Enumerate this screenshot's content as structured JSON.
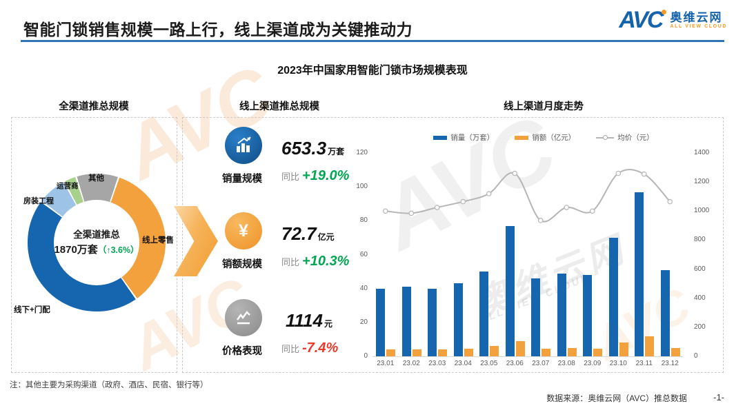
{
  "header": {
    "title": "智能门锁销售规模一路上行，线上渠道成为关键推动力",
    "logo": {
      "avc": "AVC",
      "cn": "奥维云网",
      "en": "ALL VIEW CLOUD"
    }
  },
  "subtitle": "2023年中国家用智能门锁市场规模表现",
  "watermark": {
    "text": "AVC",
    "cn": "奥维云网",
    "en": "ALL VIEW CLOUD"
  },
  "panels": {
    "left": {
      "header": "全渠道推总规模",
      "center_line1": "全渠道推总",
      "center_value": "1870万套",
      "center_growth": "（↑3.6%）"
    },
    "middle": {
      "header": "线上渠道推总规模",
      "metrics": [
        {
          "value": "653.3",
          "unit": "万套",
          "label": "销量规模",
          "yoy_prefix": "同比",
          "yoy": "+19.0%"
        },
        {
          "value": "72.7",
          "unit": "亿元",
          "label": "销额规模",
          "yoy_prefix": "同比",
          "yoy": "+10.3%"
        },
        {
          "value": "1114",
          "unit": "元",
          "label": "价格表现",
          "yoy_prefix": "同比",
          "yoy": "-7.4%"
        }
      ]
    },
    "right": {
      "header": "线上渠道月度走势"
    }
  },
  "chart_data": [
    {
      "type": "pie",
      "title": "全渠道推总规模",
      "labels": [
        "其他",
        "线上零售",
        "线下+门配",
        "房装工程",
        "运营商"
      ],
      "values": [
        10,
        35,
        45,
        7,
        3
      ],
      "colors": [
        "#a6a6a6",
        "#f2a13c",
        "#1565af",
        "#9dc3e6",
        "#a9d18e"
      ],
      "start_angle_deg": 342,
      "center_text": "全渠道推总 1870万套（↑3.6%）",
      "note": "values are percent share of total 1870万套"
    },
    {
      "type": "bar",
      "subtype": "bar+line combo",
      "title": "线上渠道月度走势",
      "categories": [
        "23.01",
        "23.02",
        "23.03",
        "23.04",
        "23.05",
        "23.06",
        "23.07",
        "23.08",
        "23.09",
        "23.10",
        "23.11",
        "23.12"
      ],
      "series": [
        {
          "name": "销量（万套）",
          "kind": "bar",
          "axis": "left",
          "color": "#1565af",
          "values": [
            40,
            41,
            40,
            43,
            50,
            77,
            46,
            49,
            48,
            70,
            97,
            51
          ]
        },
        {
          "name": "销额（亿元）",
          "kind": "bar",
          "axis": "left",
          "color": "#f2a13c",
          "values": [
            4,
            4,
            4,
            4.5,
            6,
            9,
            4.5,
            5,
            4.5,
            8,
            12,
            5
          ]
        },
        {
          "name": "均价（元）",
          "kind": "line",
          "axis": "right",
          "color": "#b5b5b5",
          "values": [
            1000,
            985,
            1025,
            1065,
            1120,
            1260,
            935,
            1025,
            1000,
            1260,
            1255,
            1065
          ]
        }
      ],
      "left_axis": {
        "min": 0,
        "max": 120,
        "ticks": [
          0,
          20,
          40,
          60,
          80,
          100,
          120
        ]
      },
      "right_axis": {
        "min": 0,
        "max": 1400,
        "ticks": [
          0,
          200,
          400,
          600,
          800,
          1000,
          1200,
          1400
        ]
      },
      "grid": false,
      "legend_position": "top"
    }
  ],
  "footer": {
    "note": "注：其他主要为采购渠道（政府、酒店、民宿、银行等）",
    "source": "数据来源：奥维云网（AVC）推总数据",
    "page": "-1-"
  }
}
